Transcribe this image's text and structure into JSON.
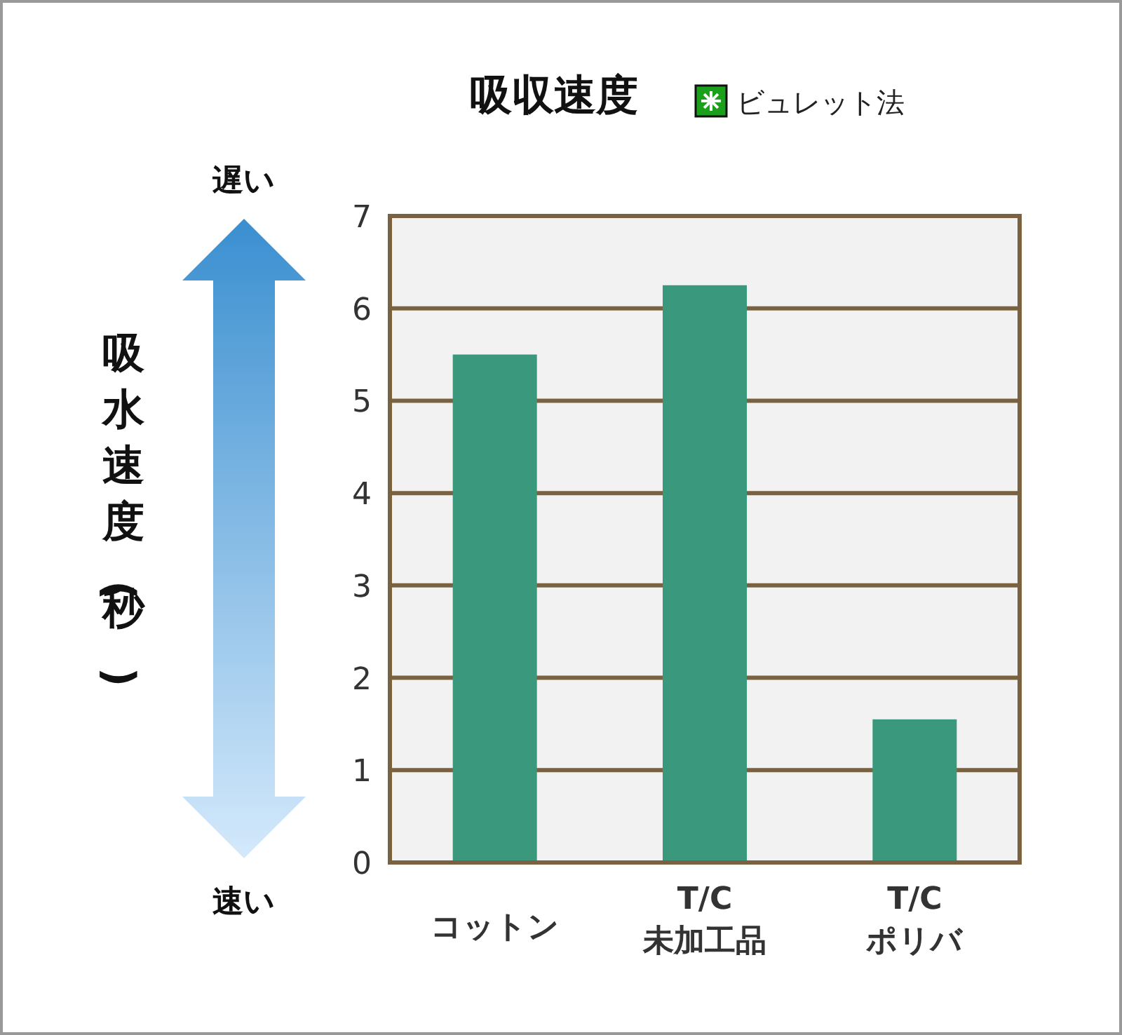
{
  "chart_data": {
    "type": "bar",
    "title": "吸収速度",
    "ylabel": "吸水速度(秒)",
    "categories": [
      "コットン",
      "T/C\n未加工品",
      "T/C\nポリバ"
    ],
    "series": [
      {
        "name": "ビュレット法",
        "color": "#3a987c",
        "values": [
          5.5,
          6.25,
          1.55
        ]
      }
    ],
    "ylim": [
      0,
      7
    ],
    "yticks": [
      0,
      1,
      2,
      3,
      4,
      5,
      6,
      7
    ],
    "grid": "y",
    "legend": "top right",
    "annotations": [
      "遅い",
      "速い"
    ]
  }
}
